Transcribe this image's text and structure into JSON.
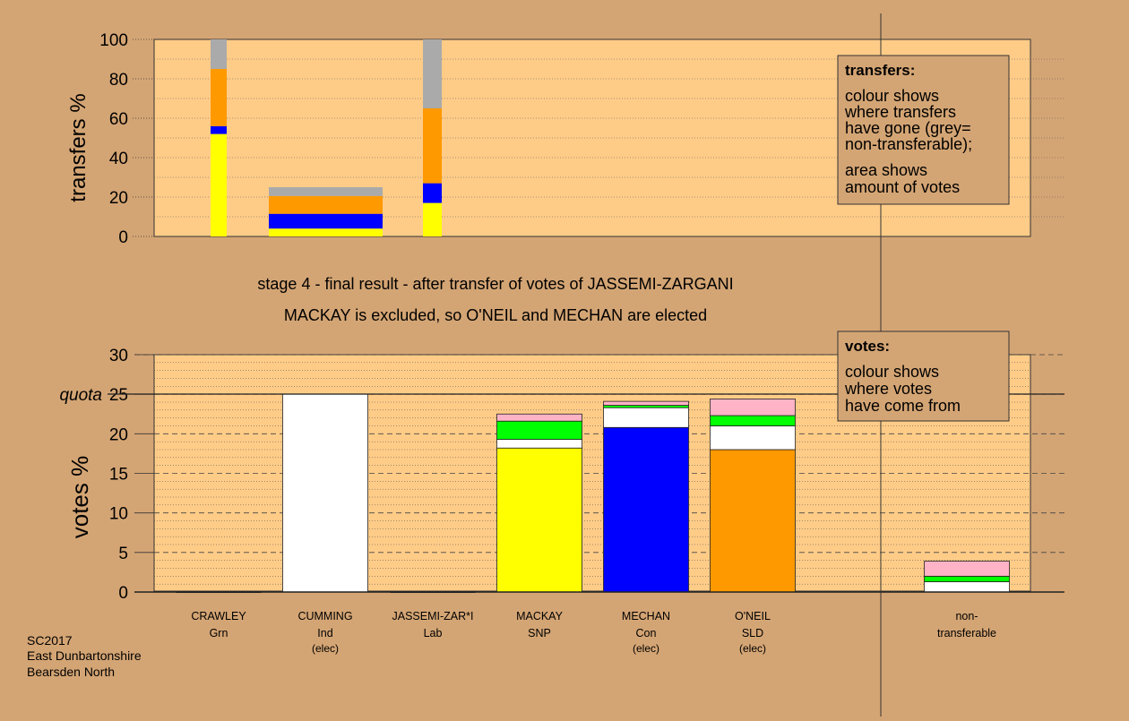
{
  "colors": {
    "background": "#d4a574",
    "plot_bg": "#ffcc88",
    "yellow": "#ffff00",
    "blue": "#0000ff",
    "orange": "#ff9900",
    "grey": "#aaaaaa",
    "green": "#00ff00",
    "pink": "#ffb3c6",
    "white": "#ffffff"
  },
  "captions": {
    "stage_line": "stage 4 - final result - after transfer of votes of JASSEMI-ZARGANI",
    "result_line": "MACKAY is excluded, so O'NEIL and MECHAN are elected",
    "footer_line1": "SC2017",
    "footer_line2": "East Dunbartonshire",
    "footer_line3": "Bearsden North"
  },
  "legend_transfers": {
    "title": "transfers:",
    "lines": [
      "colour shows",
      "where transfers",
      "have gone (grey=",
      "non-transferable);",
      "area shows",
      "amount of votes"
    ]
  },
  "legend_votes": {
    "title": "votes:",
    "lines": [
      "colour shows",
      "where votes",
      "have come from"
    ]
  },
  "chart_data": [
    {
      "type": "bar",
      "ylabel": "transfers %",
      "ylim": [
        0,
        100
      ],
      "yticks": [
        0,
        20,
        40,
        60,
        80,
        100
      ],
      "grid": "dotted",
      "bars": [
        {
          "segments": [
            {
              "color": "yellow",
              "value": 52
            },
            {
              "color": "blue",
              "value": 4
            },
            {
              "color": "orange",
              "value": 29
            },
            {
              "color": "grey",
              "value": 15
            }
          ]
        },
        {
          "segments": [
            {
              "color": "yellow",
              "value": 4
            },
            {
              "color": "blue",
              "value": 7.5
            },
            {
              "color": "orange",
              "value": 9
            },
            {
              "color": "grey",
              "value": 4.5
            }
          ]
        },
        {
          "segments": [
            {
              "color": "yellow",
              "value": 17
            },
            {
              "color": "blue",
              "value": 10
            },
            {
              "color": "orange",
              "value": 38
            },
            {
              "color": "grey",
              "value": 35
            }
          ]
        }
      ]
    },
    {
      "type": "bar",
      "ylabel": "votes %",
      "ylim": [
        0,
        30
      ],
      "yticks": [
        0,
        5,
        10,
        15,
        20,
        25,
        30
      ],
      "quota": {
        "label": "quota",
        "value": 25
      },
      "grid": "dashed",
      "categories": [
        {
          "name": "CRAWLEY",
          "party": "Grn",
          "status": ""
        },
        {
          "name": "CUMMING",
          "party": "Ind",
          "status": "(elec)"
        },
        {
          "name": "JASSEMI-ZAR*I",
          "party": "Lab",
          "status": ""
        },
        {
          "name": "MACKAY",
          "party": "SNP",
          "status": ""
        },
        {
          "name": "MECHAN",
          "party": "Con",
          "status": "(elec)"
        },
        {
          "name": "O'NEIL",
          "party": "SLD",
          "status": "(elec)"
        },
        {
          "name": "non-",
          "party": "transferable",
          "status": ""
        }
      ],
      "bars": [
        {
          "segments": []
        },
        {
          "segments": [
            {
              "color": "white",
              "value": 25
            }
          ]
        },
        {
          "segments": []
        },
        {
          "segments": [
            {
              "color": "yellow",
              "value": 18.2
            },
            {
              "color": "white",
              "value": 1.1
            },
            {
              "color": "green",
              "value": 2.3
            },
            {
              "color": "pink",
              "value": 0.9
            }
          ]
        },
        {
          "segments": [
            {
              "color": "blue",
              "value": 20.8
            },
            {
              "color": "white",
              "value": 2.5
            },
            {
              "color": "green",
              "value": 0.3
            },
            {
              "color": "pink",
              "value": 0.5
            }
          ]
        },
        {
          "segments": [
            {
              "color": "orange",
              "value": 18
            },
            {
              "color": "white",
              "value": 3
            },
            {
              "color": "green",
              "value": 1.3
            },
            {
              "color": "pink",
              "value": 2.1
            }
          ]
        },
        {
          "segments": [
            {
              "color": "white",
              "value": 1.3
            },
            {
              "color": "green",
              "value": 0.7
            },
            {
              "color": "pink",
              "value": 1.9
            }
          ]
        }
      ]
    }
  ]
}
